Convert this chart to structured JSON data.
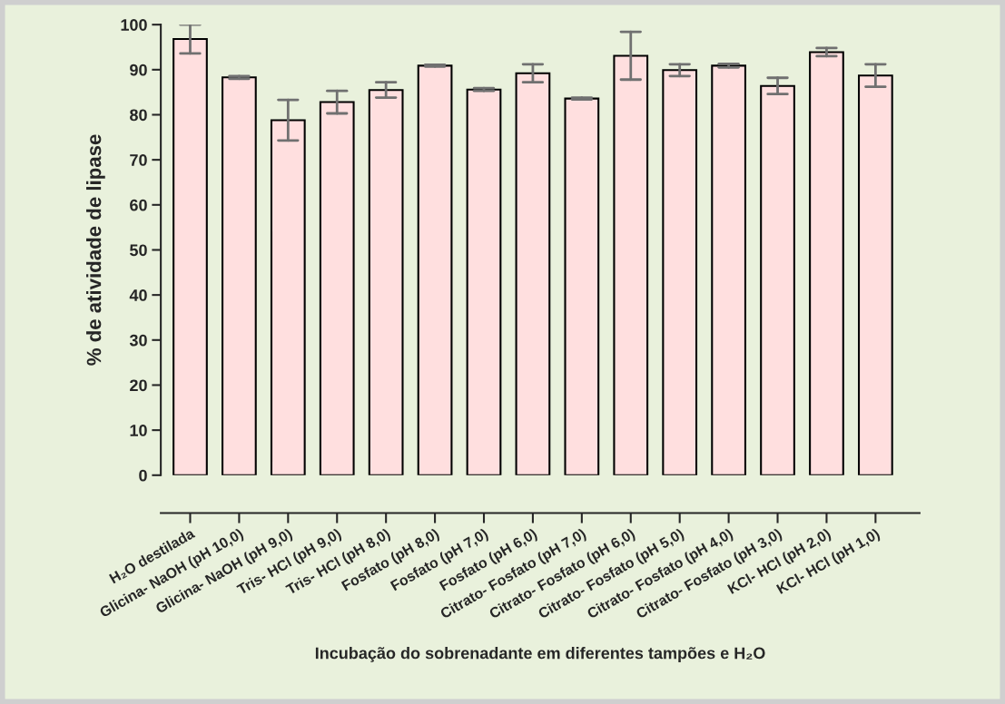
{
  "chart_data": {
    "type": "bar",
    "xlabel": "Incubação do sobrenadante em diferentes tampões e H₂O",
    "ylabel": "% de atividade de lipase",
    "categories": [
      "H₂O destilada",
      "Glicina- NaOH (pH 10,0)",
      "Glicina- NaOH (pH 9,0)",
      "Tris- HCl (pH 9,0)",
      "Tris- HCl (pH 8,0)",
      "Fosfato (pH 8,0)",
      "Fosfato (pH 7,0)",
      "Fosfato (pH 6,0)",
      "Citrato- Fosfato (pH 7,0)",
      "Citrato- Fosfato (pH 6,0)",
      "Citrato- Fosfato (pH 5,0)",
      "Citrato- Fosfato (pH 4,0)",
      "Citrato- Fosfato (pH 3,0)",
      "KCl- HCl (pH 2,0)",
      "KCl- HCl (pH 1,0)"
    ],
    "values": [
      96.8,
      88.3,
      78.8,
      82.8,
      85.5,
      90.9,
      85.6,
      89.2,
      83.6,
      93.1,
      89.9,
      90.9,
      86.4,
      93.9,
      88.7
    ],
    "errors": [
      3.2,
      0.3,
      4.5,
      2.5,
      1.7,
      0.2,
      0.3,
      2.0,
      0.2,
      5.3,
      1.3,
      0.4,
      1.8,
      0.9,
      2.5
    ],
    "color": "#ffdfdf",
    "ylim": [
      0,
      100
    ],
    "yticks": [
      0,
      10,
      20,
      30,
      40,
      50,
      60,
      70,
      80,
      90,
      100
    ],
    "grid": false,
    "legend": false
  }
}
